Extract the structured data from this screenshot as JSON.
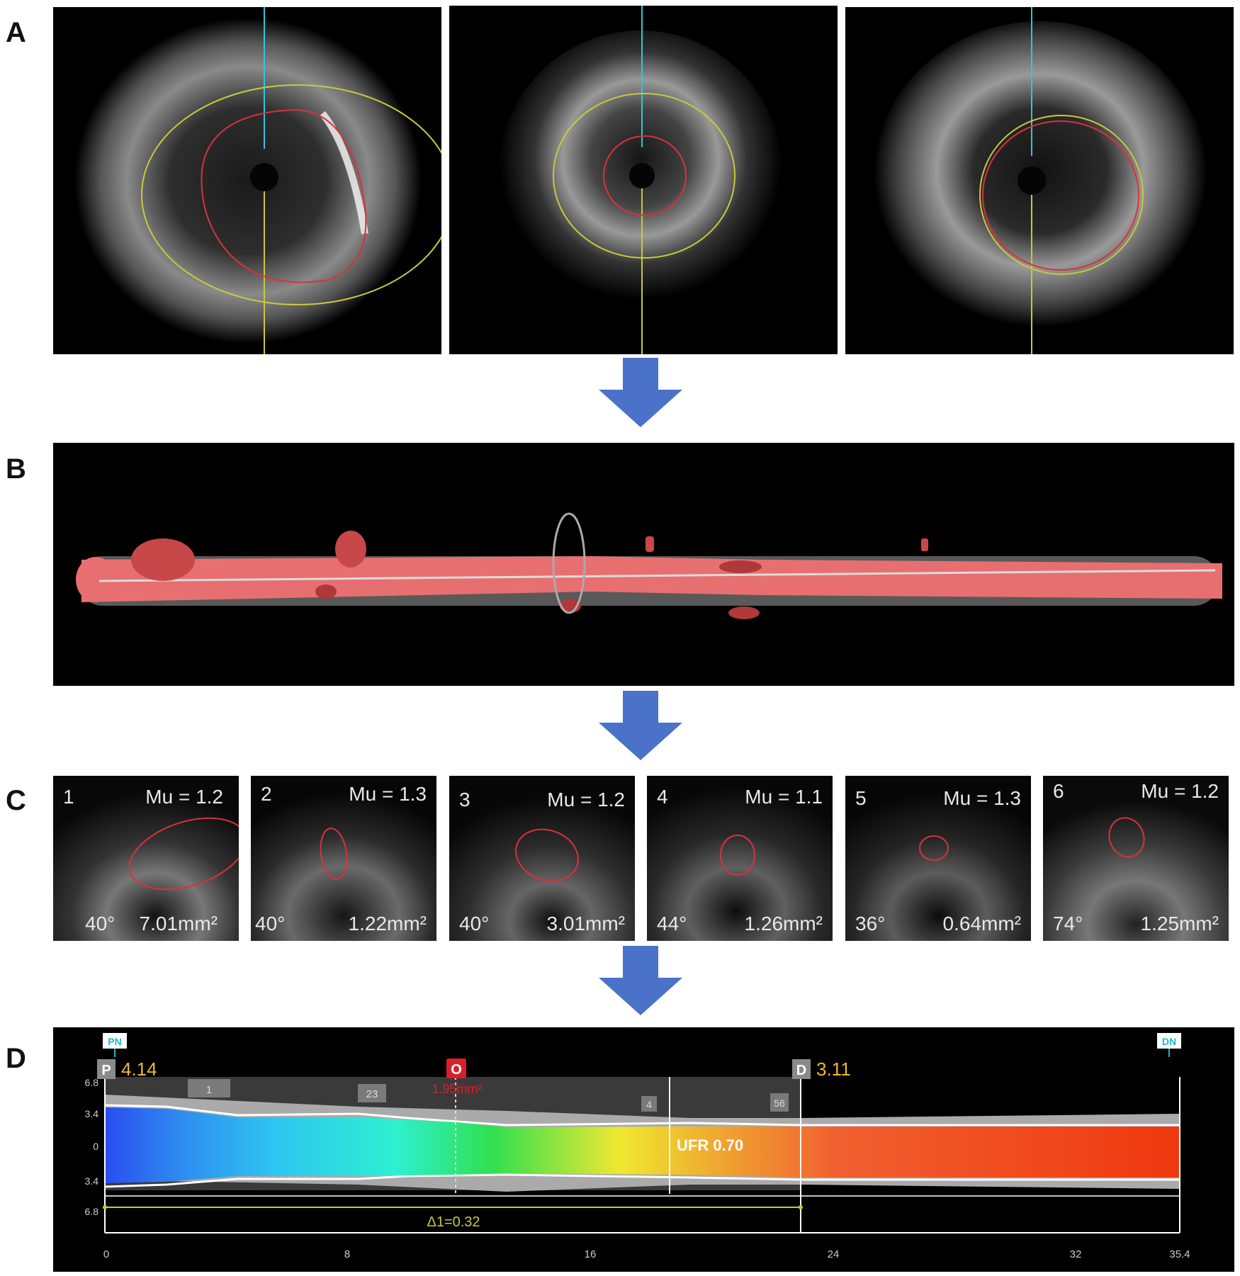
{
  "panels": {
    "a": "A",
    "b": "B",
    "c": "C",
    "d": "D"
  },
  "lesions": [
    {
      "num": "1",
      "mu": "Mu = 1.2",
      "angle": "40°",
      "area": "7.01mm²"
    },
    {
      "num": "2",
      "mu": "Mu = 1.3",
      "angle": "40°",
      "area": "1.22mm²"
    },
    {
      "num": "3",
      "mu": "Mu = 1.2",
      "angle": "40°",
      "area": "3.01mm²"
    },
    {
      "num": "4",
      "mu": "Mu = 1.1",
      "angle": "44°",
      "area": "1.26mm²"
    },
    {
      "num": "5",
      "mu": "Mu = 1.3",
      "angle": "36°",
      "area": "0.64mm²"
    },
    {
      "num": "6",
      "mu": "Mu = 1.2",
      "angle": "74°",
      "area": "1.25mm²"
    }
  ],
  "ufr_view": {
    "pn_marker": "PN",
    "dn_marker": "DN",
    "proximal_marker": "P",
    "proximal_value": "4.14",
    "distal_marker": "D",
    "distal_value": "3.11",
    "mla_marker": "O",
    "mla_value": "1.95mm²",
    "ufr_label": "UFR 0.70",
    "delta_label": "Δ1=0.32",
    "segment_tags": [
      "1",
      "23",
      "4",
      "56"
    ],
    "y_ticks": [
      "6.8",
      "3.4",
      "0",
      "3.4",
      "6.8"
    ],
    "x_ticks": [
      "0",
      "8",
      "16",
      "24",
      "32",
      "35.4"
    ]
  },
  "colors": {
    "lumen_contour": "#d8323a",
    "vessel_contour": "#c8c83c",
    "arrow": "#4a72c8",
    "ufr_text": "#f0b830",
    "mla_red": "#d8202a",
    "marker_cyan": "#1fb8c8"
  }
}
